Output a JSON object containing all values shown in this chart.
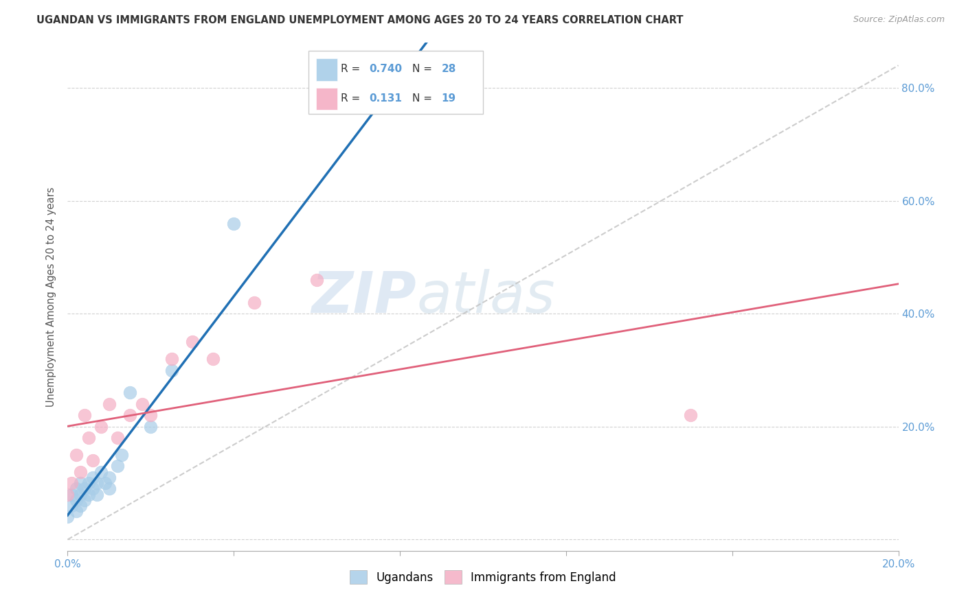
{
  "title": "UGANDAN VS IMMIGRANTS FROM ENGLAND UNEMPLOYMENT AMONG AGES 20 TO 24 YEARS CORRELATION CHART",
  "source": "Source: ZipAtlas.com",
  "ylabel": "Unemployment Among Ages 20 to 24 years",
  "xlim": [
    0.0,
    0.2
  ],
  "ylim": [
    -0.02,
    0.88
  ],
  "ytick_values": [
    0.0,
    0.2,
    0.4,
    0.6,
    0.8
  ],
  "ytick_labels": [
    "",
    "20.0%",
    "40.0%",
    "60.0%",
    "80.0%"
  ],
  "ugandan_R": 0.74,
  "ugandan_N": 28,
  "england_R": 0.131,
  "england_N": 19,
  "legend_labels": [
    "Ugandans",
    "Immigrants from England"
  ],
  "ugandan_color": "#a8cde8",
  "england_color": "#f4aec4",
  "ugandan_line_color": "#2070b4",
  "england_line_color": "#e0607a",
  "diagonal_color": "#c0c0c0",
  "background_color": "#ffffff",
  "text_color": "#5b9bd5",
  "label_color": "#555555",
  "watermark_zip": "ZIP",
  "watermark_atlas": "atlas",
  "ugandan_x": [
    0.0,
    0.001,
    0.001,
    0.002,
    0.002,
    0.002,
    0.003,
    0.003,
    0.003,
    0.004,
    0.004,
    0.005,
    0.005,
    0.006,
    0.006,
    0.007,
    0.007,
    0.008,
    0.009,
    0.01,
    0.01,
    0.012,
    0.013,
    0.015,
    0.02,
    0.025,
    0.04,
    0.085
  ],
  "ugandan_y": [
    0.04,
    0.06,
    0.08,
    0.05,
    0.07,
    0.09,
    0.06,
    0.08,
    0.1,
    0.07,
    0.09,
    0.08,
    0.1,
    0.09,
    0.11,
    0.08,
    0.1,
    0.12,
    0.1,
    0.09,
    0.11,
    0.13,
    0.15,
    0.26,
    0.2,
    0.3,
    0.56,
    0.82
  ],
  "england_x": [
    0.0,
    0.001,
    0.002,
    0.003,
    0.004,
    0.005,
    0.006,
    0.008,
    0.01,
    0.012,
    0.015,
    0.018,
    0.02,
    0.025,
    0.03,
    0.035,
    0.045,
    0.06,
    0.15
  ],
  "england_y": [
    0.08,
    0.1,
    0.15,
    0.12,
    0.22,
    0.18,
    0.14,
    0.2,
    0.24,
    0.18,
    0.22,
    0.24,
    0.22,
    0.32,
    0.35,
    0.32,
    0.42,
    0.46,
    0.22
  ]
}
